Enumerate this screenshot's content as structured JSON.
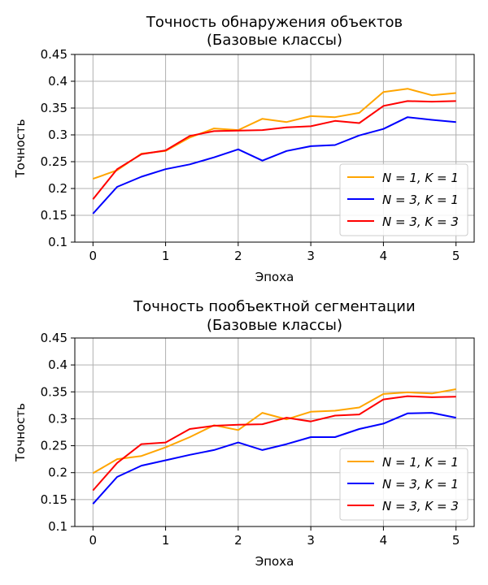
{
  "chart_data": [
    {
      "type": "line",
      "title_line1": "Точность обнаружения объектов",
      "title_line2": "(Базовые классы)",
      "xlabel": "Эпоха",
      "ylabel": "Точность",
      "xlim": [
        -0.25,
        5.25
      ],
      "ylim": [
        0.1,
        0.45
      ],
      "xticks": [
        0,
        1,
        2,
        3,
        4,
        5
      ],
      "xtick_labels": [
        "0",
        "1",
        "2",
        "3",
        "4",
        "5"
      ],
      "yticks": [
        0.1,
        0.15,
        0.2,
        0.25,
        0.3,
        0.35,
        0.4,
        0.45
      ],
      "ytick_labels": [
        "0.1",
        "0.15",
        "0.2",
        "0.25",
        "0.3",
        "0.35",
        "0.4",
        "0.45"
      ],
      "grid": true,
      "legend_position": "lower-right",
      "x": [
        0,
        0.333,
        0.667,
        1,
        1.333,
        1.667,
        2,
        2.333,
        2.667,
        3,
        3.333,
        3.667,
        4,
        4.333,
        4.667,
        5
      ],
      "series": [
        {
          "name": "N = 1, K = 1",
          "color": "#ffa500",
          "values": [
            0.218,
            0.234,
            0.265,
            0.27,
            0.295,
            0.312,
            0.309,
            0.33,
            0.324,
            0.335,
            0.333,
            0.341,
            0.38,
            0.386,
            0.374,
            0.378
          ]
        },
        {
          "name": "N = 3, K = 1",
          "color": "#0000ff",
          "values": [
            0.153,
            0.203,
            0.222,
            0.236,
            0.245,
            0.258,
            0.273,
            0.252,
            0.27,
            0.279,
            0.281,
            0.299,
            0.311,
            0.333,
            0.328,
            0.324
          ]
        },
        {
          "name": "N = 3, K = 3",
          "color": "#ff0000",
          "values": [
            0.18,
            0.236,
            0.264,
            0.271,
            0.298,
            0.307,
            0.308,
            0.309,
            0.314,
            0.316,
            0.326,
            0.322,
            0.354,
            0.363,
            0.362,
            0.363
          ]
        }
      ]
    },
    {
      "type": "line",
      "title_line1": "Точность пообъектной сегментации",
      "title_line2": "(Базовые классы)",
      "xlabel": "Эпоха",
      "ylabel": "Точность",
      "xlim": [
        -0.25,
        5.25
      ],
      "ylim": [
        0.1,
        0.45
      ],
      "xticks": [
        0,
        1,
        2,
        3,
        4,
        5
      ],
      "xtick_labels": [
        "0",
        "1",
        "2",
        "3",
        "4",
        "5"
      ],
      "yticks": [
        0.1,
        0.15,
        0.2,
        0.25,
        0.3,
        0.35,
        0.4,
        0.45
      ],
      "ytick_labels": [
        "0.1",
        "0.15",
        "0.2",
        "0.25",
        "0.3",
        "0.35",
        "0.4",
        "0.45"
      ],
      "grid": true,
      "legend_position": "lower-right",
      "x": [
        0,
        0.333,
        0.667,
        1,
        1.333,
        1.667,
        2,
        2.333,
        2.667,
        3,
        3.333,
        3.667,
        4,
        4.333,
        4.667,
        5
      ],
      "series": [
        {
          "name": "N = 1, K = 1",
          "color": "#ffa500",
          "values": [
            0.199,
            0.225,
            0.231,
            0.247,
            0.266,
            0.288,
            0.279,
            0.311,
            0.299,
            0.313,
            0.315,
            0.321,
            0.346,
            0.349,
            0.347,
            0.355
          ]
        },
        {
          "name": "N = 3, K = 1",
          "color": "#0000ff",
          "values": [
            0.142,
            0.192,
            0.213,
            0.223,
            0.233,
            0.242,
            0.256,
            0.242,
            0.253,
            0.266,
            0.266,
            0.281,
            0.291,
            0.31,
            0.311,
            0.302
          ]
        },
        {
          "name": "N = 3, K = 3",
          "color": "#ff0000",
          "values": [
            0.167,
            0.218,
            0.253,
            0.256,
            0.281,
            0.287,
            0.289,
            0.29,
            0.302,
            0.295,
            0.306,
            0.308,
            0.336,
            0.342,
            0.34,
            0.341
          ]
        }
      ]
    }
  ]
}
